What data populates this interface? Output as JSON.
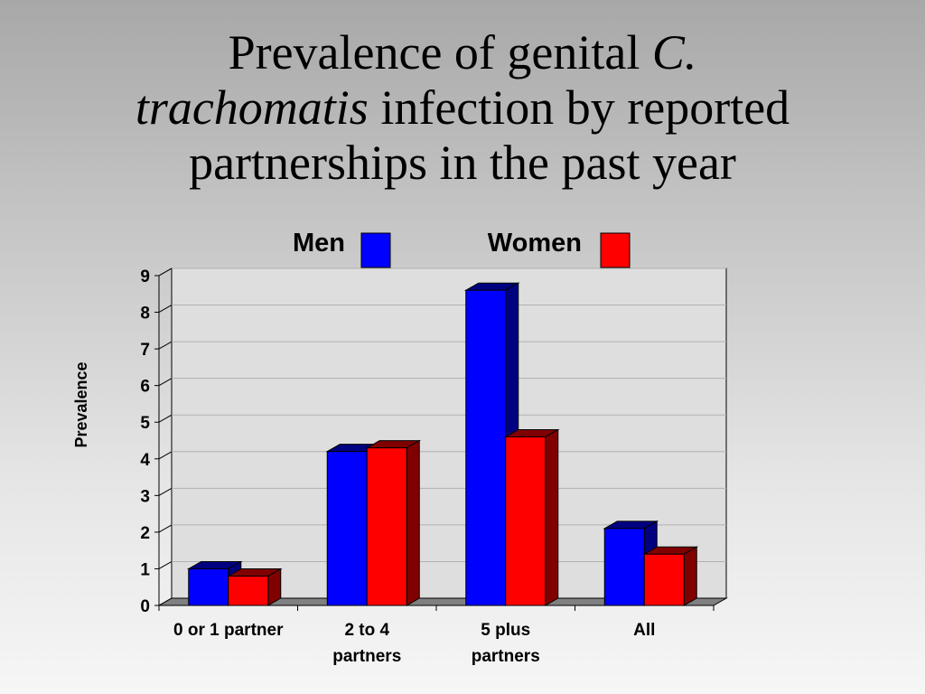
{
  "title": {
    "part1": "Prevalence of genital ",
    "part2_italic": "C.",
    "part3_italic": "trachomatis",
    "part4": " infection by reported",
    "part5": "partnerships in the past year"
  },
  "colors": {
    "men": "#0000ff",
    "women": "#ff0000",
    "men_dark": "#000080",
    "women_dark": "#800000",
    "floor": "#808080"
  },
  "chart_data": {
    "type": "bar",
    "categories": [
      [
        "0 or 1 partner"
      ],
      [
        "2 to 4",
        "partners"
      ],
      [
        "5 plus",
        "partners"
      ],
      [
        "All"
      ]
    ],
    "series": [
      {
        "name": "Men",
        "values": [
          1.0,
          4.2,
          8.6,
          2.1
        ]
      },
      {
        "name": "Women",
        "values": [
          0.8,
          4.3,
          4.6,
          1.4
        ]
      }
    ],
    "ylabel": "Prevalence",
    "xlabel": "",
    "ylim": [
      0,
      9
    ],
    "yticks": [
      0,
      1,
      2,
      3,
      4,
      5,
      6,
      7,
      8,
      9
    ],
    "grid": true,
    "legend_position": "top",
    "three_d": true
  }
}
